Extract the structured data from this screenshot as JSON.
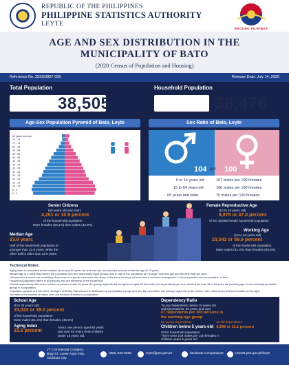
{
  "header": {
    "line1": "REPUBLIC OF THE PHILIPPINES",
    "line2": "PHILIPPINE STATISTICS AUTHORITY",
    "line3": "LEYTE",
    "bagong_pilipinas": "BAGONG PILIPINAS"
  },
  "title": {
    "line1": "AGE AND SEX DISTRIBUTION IN THE",
    "line2": "MUNICIPALITY OF BATO",
    "subtitle": "(2020 Census of Population and Housing)"
  },
  "refbar": {
    "reference": "Reference No. 25SG0837-039",
    "release": "Release Date: July 14, 2025"
  },
  "stats": {
    "total_population_label": "Total Population",
    "total_population": "38,505",
    "household_population_label": "Household Population",
    "household_population": "38,476"
  },
  "sections": {
    "pyramid_title": "Age-Sex Population Pyramid of Bato, Leyte",
    "ratio_title": "Sex Ratio of Bato, Leyte"
  },
  "chart_data": {
    "type": "bar",
    "orientation": "horizontal-pyramid",
    "title": "Age-Sex Population Pyramid of Bato, Leyte",
    "categories": [
      "80 years and over",
      "75 - 79",
      "70 - 74",
      "65 - 69",
      "60 - 64",
      "55 - 59",
      "50 - 54",
      "45 - 49",
      "40 - 44",
      "35 - 39",
      "30 - 34",
      "25 - 29",
      "20 - 24",
      "15 - 19",
      "10 - 14",
      "5 - 9",
      "0 - 4"
    ],
    "series": [
      {
        "name": "Male",
        "values": [
          180,
          160,
          260,
          390,
          560,
          740,
          900,
          1040,
          1160,
          1300,
          1420,
          1520,
          1720,
          2000,
          2140,
          2200,
          2100
        ]
      },
      {
        "name": "Female",
        "values": [
          320,
          240,
          320,
          440,
          580,
          740,
          880,
          1000,
          1120,
          1240,
          1340,
          1420,
          1600,
          1880,
          2020,
          2100,
          2000
        ]
      }
    ],
    "colors": {
      "male": "#2f80c7",
      "female": "#e35592"
    },
    "grid": false
  },
  "sex_ratio": {
    "male_value": "104",
    "per": "per",
    "female_value": "100",
    "rows": [
      {
        "age": "0 to 14 years old",
        "ratio": "107 males per 100 females"
      },
      {
        "age": "15 to 64 years old",
        "ratio": "106 males per 100 females"
      },
      {
        "age": "65 years and older",
        "ratio": "76 males per 100 females"
      }
    ]
  },
  "infographic": {
    "senior": {
      "title": "Senior Citizens",
      "sub": "(60 years old and over)",
      "number": "4,201 or 10.9 percent",
      "line1": "of the household population",
      "line2": "More females (55.1%) than males (44.9%)"
    },
    "median": {
      "title": "Median Age",
      "number": "23.9 years",
      "line1": "Half of the household population is",
      "line2": "younger than 23.9 years, while the",
      "line3": "other half is older than 23.9 years."
    },
    "school": {
      "title": "School Age",
      "sub": "(5 to 24 years old)",
      "number": "15,023 or 39.0 percent",
      "line1": "of the household population",
      "line2": "More males (51.5%) than females (48.5%)"
    },
    "aging": {
      "title": "Aging Index",
      "number": "33.5 percent",
      "line1": "About one person aged 60 years",
      "line2": "and over for every three children",
      "line3": "under 15 years old."
    },
    "repro": {
      "title": "Female Reproductive Age",
      "sub": "(15 to 49 years old)",
      "number": "8,875 or 47.0 percent",
      "line1": "of the 18,895 female household population"
    },
    "working": {
      "title": "Working Age",
      "sub": "(15 to 64 years old)",
      "number": "23,042 or 59.9 percent",
      "line1": "of the household population",
      "line2": "More males (51.4%) than females (48.6%)"
    },
    "dependency": {
      "title": "Dependency Ratio",
      "line1": "Young Dependents: below 15 years old",
      "line2": "Old Dependents: 65 years and over",
      "number": "67 dependents per 100 persons in",
      "number2": "the working-age group",
      "young": "55 young dependents",
      "old": "12 old dependents"
    },
    "children": {
      "title": "Children below 5 years old",
      "number": "4,288 or 11.1 percent",
      "line1": "of the household population",
      "line2": "There were 109 males per 100 females in",
      "line3": "children under 5 years old"
    }
  },
  "notes": {
    "heading": "Technical Notes:",
    "lines": [
      "Aging index is calculated as the number of persons 60 years old and over per one hundred persons under the age of 15 years.",
      "Median age is a value that divides the population into two numerically equal groups; that is, half of the population are younger than this age and the other half are older.",
      "Household is a social unit consisting of a person or a group of persons who sleep in the same housing unit and have a common arrangement in the preparation and consumption of food.",
      "Household population refers to all persons who are members of the household.",
      "Overall dependency ratio is the number of persons under 15 years old (young dependents) and persons aged 65 and older (old dependents) per one hundred persons 15 to 64 years old (working-age or economically productive group) in a population.",
      "Population pyramid is a bar chart, arranged vertically, that shows the distribution of a population by age and sex. By convention, the younger ages are at the bottom, with males on the left and females on the right.",
      "Sex ratio is the number of males over one hundred females in a population."
    ]
  },
  "footer": {
    "address1": "JT Commercial Complex,",
    "address2": "Brgy.74, Lower Nula-Tula,",
    "address3": "Tacloban City",
    "phone": "(053) 832-8298",
    "email": "leyte@psa.gov.ph",
    "facebook": "facebook.com/psaleyte",
    "website": "rsso08.psa.gov.ph/leyte"
  }
}
